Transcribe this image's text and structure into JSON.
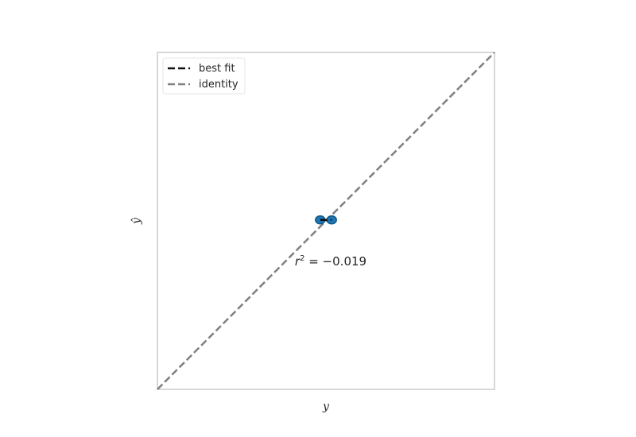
{
  "chart_data": {
    "type": "scatter",
    "xlabel": "y",
    "ylabel": "ŷ",
    "xlim": [
      0,
      1
    ],
    "ylim": [
      0,
      1
    ],
    "grid": false,
    "legend_placement": "top-left",
    "legend": [
      {
        "label": "best fit",
        "color": "#111111",
        "style": "dashed"
      },
      {
        "label": "identity",
        "color": "#808080",
        "style": "dashed"
      }
    ],
    "points": [
      {
        "x": 0.483,
        "y": 0.503
      },
      {
        "x": 0.517,
        "y": 0.503
      }
    ],
    "best_fit": {
      "x": [
        0.483,
        0.517
      ],
      "y": [
        0.503,
        0.503
      ]
    },
    "identity": {
      "x": [
        0,
        1
      ],
      "y": [
        0,
        1
      ]
    },
    "annotation": {
      "text_prefix": "r",
      "superscript": "2",
      "text_suffix": " = −0.019",
      "x": 0.5,
      "y": 0.38
    },
    "colors": {
      "points": "#1f77b4",
      "point_edge": "#0e5a8a",
      "frame": "#cccccc"
    }
  }
}
